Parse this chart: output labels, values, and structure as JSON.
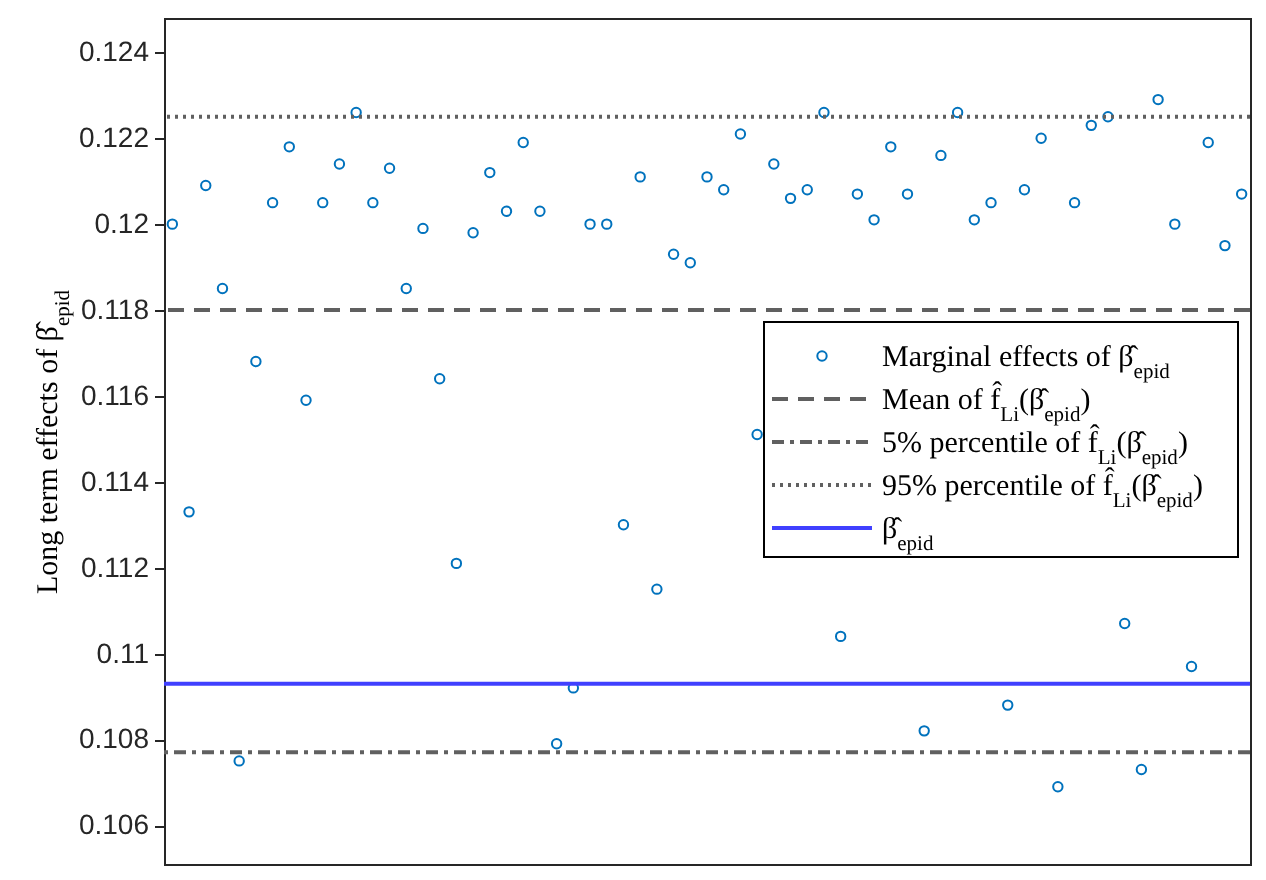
{
  "chart_data": {
    "type": "scatter",
    "ylabel": "Long term effects of β̂$_{epid}$",
    "categories": [
      null,
      null,
      null,
      null,
      null,
      null,
      null,
      null,
      null,
      null,
      null,
      null,
      null,
      null,
      null,
      null,
      null,
      null,
      null,
      null,
      null,
      null,
      null,
      null,
      null,
      null,
      null,
      null,
      null,
      null,
      null,
      null,
      null,
      null,
      null,
      null,
      null,
      null,
      null,
      null,
      null,
      null,
      null,
      null,
      null,
      null,
      null,
      null,
      null,
      null,
      null,
      null,
      null,
      null,
      null,
      null,
      null,
      null,
      null,
      null,
      null,
      null,
      null,
      null,
      null
    ],
    "series": [
      {
        "name": "Marginal effects of β̂$_{epid}$",
        "color": "#0072bd",
        "values": [
          0.12,
          0.1133,
          0.1209,
          0.1185,
          0.1075,
          0.1168,
          0.1205,
          0.1218,
          0.1159,
          0.1205,
          0.1214,
          0.1226,
          0.1205,
          0.1213,
          0.1185,
          0.1199,
          0.1164,
          0.1121,
          0.1198,
          0.1212,
          0.1203,
          0.1219,
          0.1203,
          0.1079,
          0.1092,
          0.12,
          0.12,
          0.113,
          0.1211,
          0.1115,
          0.1193,
          0.1191,
          0.1211,
          0.1208,
          0.1221,
          0.1151,
          0.1214,
          0.1206,
          0.1208,
          0.1226,
          0.1104,
          0.1207,
          0.1201,
          0.1218,
          0.1207,
          0.1082,
          0.1216,
          0.1226,
          0.1201,
          0.1205,
          0.1088,
          0.1208,
          0.122,
          0.1069,
          0.1205,
          0.1223,
          0.1225,
          0.1107,
          0.1073,
          0.1229,
          0.12,
          0.1097,
          0.1219,
          0.1195,
          0.1207
        ]
      }
    ],
    "ref_lines": [
      {
        "axis": "y",
        "value": 0.118,
        "label": "Mean of f̂$_{Li}$(β̂$_{epid}$)",
        "color": "#606060",
        "line_style": "dashed"
      },
      {
        "axis": "y",
        "value": 0.1077,
        "label": "5% percentile of f̂$_{Li}$(β̂$_{epid}$)",
        "color": "#606060",
        "line_style": "dashdot"
      },
      {
        "axis": "y",
        "value": 0.1225,
        "label": "95% percentile of f̂$_{Li}$(β̂$_{epid}$)",
        "color": "#606060",
        "line_style": "dotted"
      },
      {
        "axis": "y",
        "value": 0.1093,
        "label": "β̂$_{epid}$",
        "color": "#4040ff",
        "line_style": "solid"
      }
    ],
    "ylim": [
      0.1051,
      0.1248
    ],
    "yticks": [
      0.106,
      0.108,
      0.11,
      0.112,
      0.114,
      0.116,
      0.118,
      0.12,
      0.122,
      0.124
    ],
    "marker": "circle",
    "legend": "right",
    "tick_labels": "y",
    "grid": false
  }
}
